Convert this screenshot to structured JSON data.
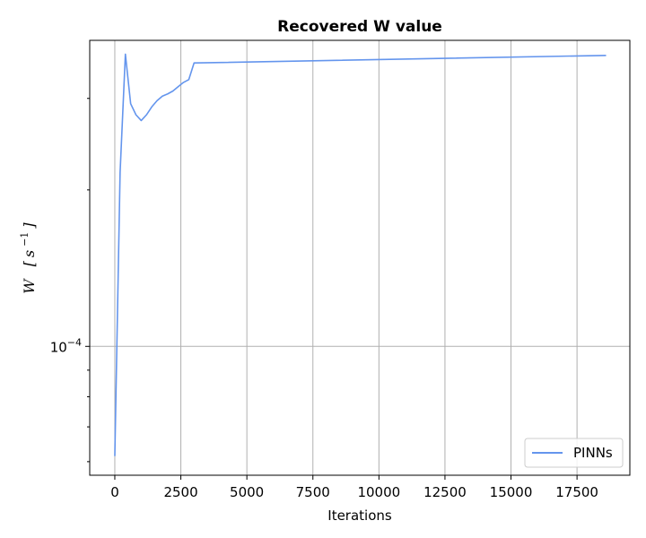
{
  "chart_data": {
    "type": "line",
    "title": "Recovered W value",
    "xlabel": "Iterations",
    "ylabel": {
      "symbol": "W",
      "unit_base": "s",
      "unit_exp": "−1"
    },
    "x_scale": "linear",
    "y_scale": "log",
    "xlim": [
      -950,
      19500
    ],
    "ylim": [
      5.65e-05,
      0.000388
    ],
    "xticks": [
      0,
      2500,
      5000,
      7500,
      10000,
      12500,
      15000,
      17500
    ],
    "xtick_labels": [
      "0",
      "2500",
      "5000",
      "7500",
      "10000",
      "12500",
      "15000",
      "17500"
    ],
    "ytick_major": [
      {
        "value": 0.0001,
        "label_base": "10",
        "label_exp": "−4"
      }
    ],
    "ytick_minor": [
      6e-05,
      7e-05,
      8e-05,
      9e-05,
      0.0002,
      0.0003
    ],
    "grid": true,
    "legend_position": "lower-right",
    "series": [
      {
        "name": "PINNs",
        "color": "#6495ED",
        "x": [
          0,
          200,
          400,
          600,
          800,
          1000,
          1200,
          1400,
          1600,
          1800,
          2000,
          2200,
          2400,
          2600,
          2800,
          3000,
          18600
        ],
        "y": [
          6.15e-05,
          0.000216,
          0.000365,
          0.000293,
          0.000279,
          0.000272,
          0.000279,
          0.000289,
          0.000297,
          0.000303,
          0.000306,
          0.00031,
          0.000316,
          0.000322,
          0.000326,
          0.000351,
          0.000363
        ]
      }
    ]
  }
}
